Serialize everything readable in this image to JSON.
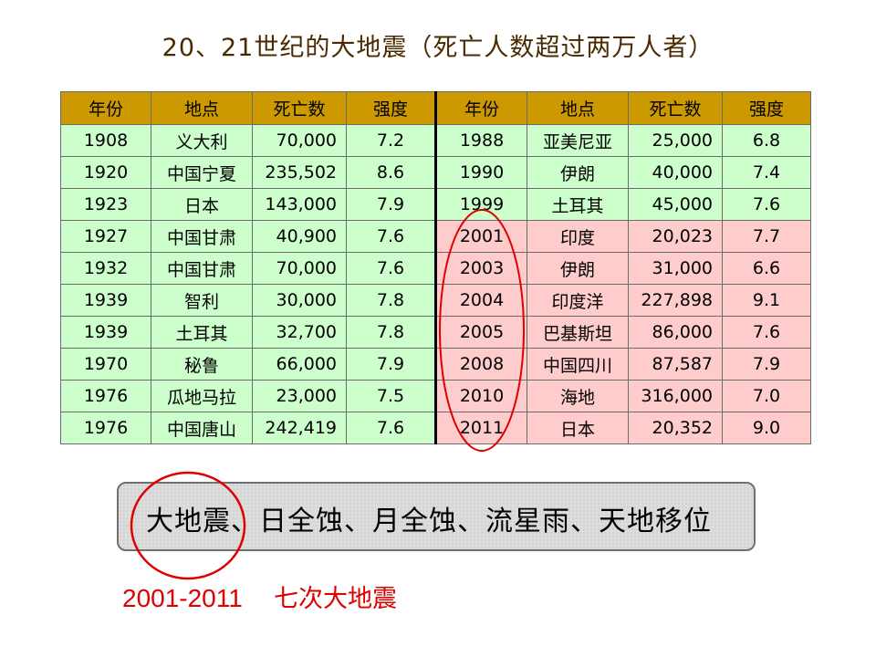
{
  "title": "20、21世纪的大地震（死亡人数超过两万人者）",
  "table": {
    "headers": [
      "年份",
      "地点",
      "死亡数",
      "强度"
    ],
    "left_rows": [
      {
        "year": "1908",
        "place": "义大利",
        "deaths": "70,000",
        "mag": "7.2",
        "color": "green"
      },
      {
        "year": "1920",
        "place": "中国宁夏",
        "deaths": "235,502",
        "mag": "8.6",
        "color": "green"
      },
      {
        "year": "1923",
        "place": "日本",
        "deaths": "143,000",
        "mag": "7.9",
        "color": "green"
      },
      {
        "year": "1927",
        "place": "中国甘肃",
        "deaths": "40,900",
        "mag": "7.6",
        "color": "green"
      },
      {
        "year": "1932",
        "place": "中国甘肃",
        "deaths": "70,000",
        "mag": "7.6",
        "color": "green"
      },
      {
        "year": "1939",
        "place": "智利",
        "deaths": "30,000",
        "mag": "7.8",
        "color": "green"
      },
      {
        "year": "1939",
        "place": "土耳其",
        "deaths": "32,700",
        "mag": "7.8",
        "color": "green"
      },
      {
        "year": "1970",
        "place": "秘鲁",
        "deaths": "66,000",
        "mag": "7.9",
        "color": "green"
      },
      {
        "year": "1976",
        "place": "瓜地马拉",
        "deaths": "23,000",
        "mag": "7.5",
        "color": "green"
      },
      {
        "year": "1976",
        "place": "中国唐山",
        "deaths": "242,419",
        "mag": "7.6",
        "color": "green"
      }
    ],
    "right_rows": [
      {
        "year": "1988",
        "place": "亚美尼亚",
        "deaths": "25,000",
        "mag": "6.8",
        "color": "green"
      },
      {
        "year": "1990",
        "place": "伊朗",
        "deaths": "40,000",
        "mag": "7.4",
        "color": "green"
      },
      {
        "year": "1999",
        "place": "土耳其",
        "deaths": "45,000",
        "mag": "7.6",
        "color": "green"
      },
      {
        "year": "2001",
        "place": "印度",
        "deaths": "20,023",
        "mag": "7.7",
        "color": "pink"
      },
      {
        "year": "2003",
        "place": "伊朗",
        "deaths": "31,000",
        "mag": "6.6",
        "color": "pink"
      },
      {
        "year": "2004",
        "place": "印度洋",
        "deaths": "227,898",
        "mag": "9.1",
        "color": "pink"
      },
      {
        "year": "2005",
        "place": "巴基斯坦",
        "deaths": "86,000",
        "mag": "7.6",
        "color": "pink"
      },
      {
        "year": "2008",
        "place": "中国四川",
        "deaths": "87,587",
        "mag": "7.9",
        "color": "pink"
      },
      {
        "year": "2010",
        "place": "海地",
        "deaths": "316,000",
        "mag": "7.0",
        "color": "pink"
      },
      {
        "year": "2011",
        "place": "日本",
        "deaths": "20,352",
        "mag": "9.0",
        "color": "pink"
      }
    ]
  },
  "box_text": "大地震、日全蚀、月全蚀、流星雨、天地移位",
  "note_range": "2001-2011",
  "note_label": "七次大地震",
  "colors": {
    "header_bg": "#cc9900",
    "green_row": "#ccffcc",
    "pink_row": "#ffcccc",
    "annotation_red": "#e00000"
  }
}
